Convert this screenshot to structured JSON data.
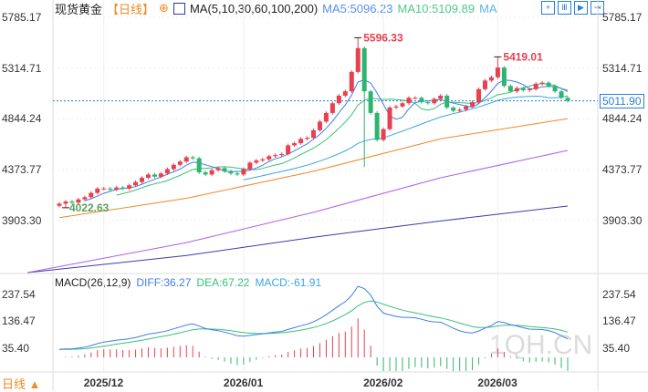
{
  "header": {
    "title": "现货黄金",
    "period": "【日线】",
    "ma_label": "MA(5,10,30,60,100,200)",
    "ma5": "MA5:5096.23",
    "ma10": "MA10:5109.89",
    "ma_more": "MA"
  },
  "toolbar": [
    {
      "icon": "crosshair-icon"
    },
    {
      "icon": "range-icon"
    },
    {
      "icon": "play-icon"
    },
    {
      "icon": "forward-icon"
    }
  ],
  "macd_header": {
    "label": "MACD(26,12,9)",
    "diff": "DIFF:36.27",
    "dea": "DEA:67.22",
    "macd": "MACD:-61.91"
  },
  "footer": {
    "period": "日线 ▲"
  },
  "watermark": "1QH.CN",
  "colors": {
    "up": "#e8404f",
    "down": "#2db56f",
    "ma5": "#3d7fe6",
    "ma10": "#38c07a",
    "ma30": "#3aa6e0",
    "ma60": "#f0882a",
    "ma100": "#b35ee0",
    "ma200": "#3a3cb0",
    "diff": "#3d7fe6",
    "dea": "#38c07a",
    "last": "#2a7fd4"
  },
  "chart_data": {
    "type": "candlestick",
    "price_ticks": [
      "5785.17",
      "5314.71",
      "4844.24",
      "4373.77",
      "3903.30"
    ],
    "macd_ticks": [
      "237.54",
      "136.47",
      "35.40"
    ],
    "x_ticks": [
      {
        "label": "2025/12",
        "index": 7
      },
      {
        "label": "2026/01",
        "index": 29
      },
      {
        "label": "2026/02",
        "index": 51
      },
      {
        "label": "2026/03",
        "index": 69
      }
    ],
    "last_price": "5011.90",
    "high_label": "5596.33",
    "high_index": 47,
    "high2_label": "5419.01",
    "high2_index": 69,
    "low_label": "4022.63",
    "low_index": 1,
    "closes": [
      4060,
      4080,
      4070,
      4100,
      4120,
      4160,
      4200,
      4200,
      4190,
      4210,
      4200,
      4230,
      4260,
      4300,
      4330,
      4310,
      4340,
      4380,
      4420,
      4450,
      4490,
      4480,
      4350,
      4330,
      4370,
      4390,
      4360,
      4340,
      4330,
      4380,
      4440,
      4460,
      4470,
      4500,
      4510,
      4520,
      4600,
      4620,
      4660,
      4670,
      4740,
      4820,
      4900,
      4990,
      5060,
      5100,
      5280,
      5500,
      5100,
      4900,
      4650,
      4750,
      4950,
      4960,
      4990,
      5040,
      5040,
      5000,
      4990,
      5030,
      5060,
      4950,
      4920,
      4930,
      4960,
      5000,
      5120,
      5200,
      5230,
      5320,
      5150,
      5100,
      5130,
      5110,
      5120,
      5170,
      5180,
      5150,
      5100,
      5040,
      5012
    ],
    "ma60": [
      [
        0,
        3930
      ],
      [
        20,
        4110
      ],
      [
        40,
        4360
      ],
      [
        60,
        4660
      ],
      [
        80,
        4848
      ]
    ],
    "ma100": [
      [
        -5,
        3420
      ],
      [
        20,
        3700
      ],
      [
        40,
        3980
      ],
      [
        60,
        4300
      ],
      [
        80,
        4553
      ]
    ],
    "ma200": [
      [
        -5,
        3420
      ],
      [
        20,
        3580
      ],
      [
        40,
        3750
      ],
      [
        60,
        3900
      ],
      [
        80,
        4038
      ]
    ]
  }
}
